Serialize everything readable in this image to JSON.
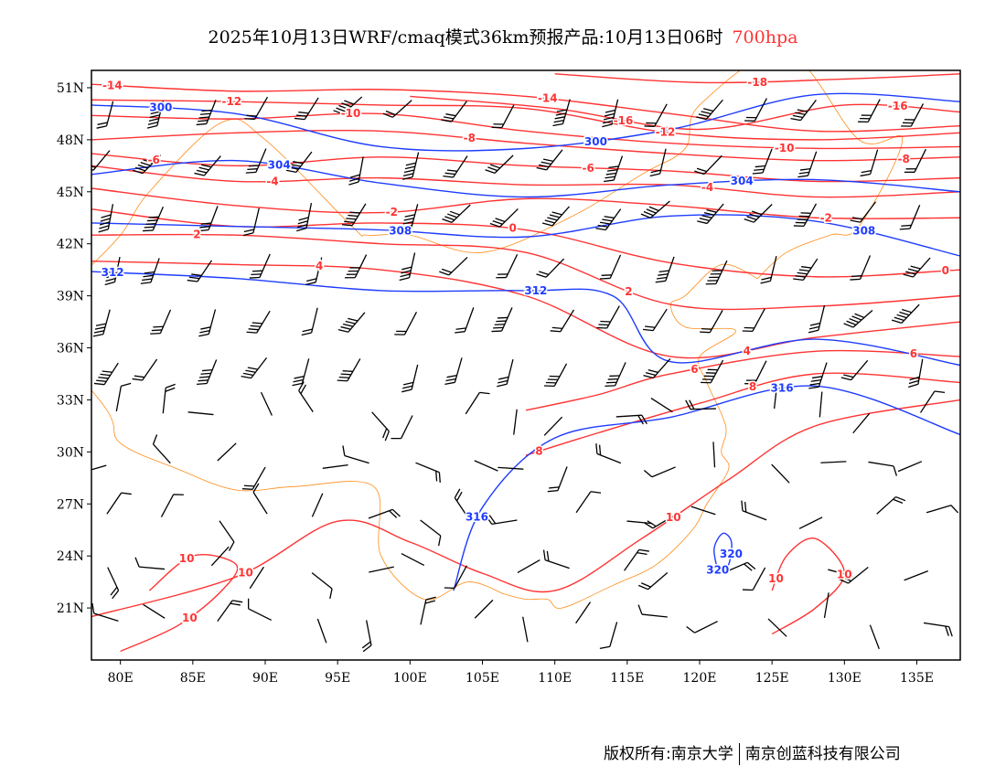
{
  "title": {
    "main": "2025年10月13日WRF/cmaq模式36km预报产品:10月13日06时",
    "level": "700hpa"
  },
  "footer": {
    "copyright": "版权所有:南京大学",
    "company": "南京创蓝科技有限公司"
  },
  "colors": {
    "temperature": "#ff3333",
    "height": "#1e3cff",
    "border": "#ff8c1a",
    "wind": "#000000"
  },
  "map": {
    "lon_range": [
      78,
      138
    ],
    "lat_range": [
      18,
      52
    ],
    "x_ticks": [
      "80E",
      "85E",
      "90E",
      "95E",
      "100E",
      "105E",
      "110E",
      "115E",
      "120E",
      "125E",
      "130E",
      "135E"
    ],
    "x_tick_values": [
      80,
      85,
      90,
      95,
      100,
      105,
      110,
      115,
      120,
      125,
      130,
      135
    ],
    "y_ticks": [
      "51N",
      "48N",
      "45N",
      "42N",
      "39N",
      "36N",
      "33N",
      "30N",
      "27N",
      "24N",
      "21N"
    ],
    "y_tick_values": [
      51,
      48,
      45,
      42,
      39,
      36,
      33,
      30,
      27,
      24,
      21
    ],
    "temperature_contours": [
      {
        "level": "-18",
        "lon": [
          110,
          120,
          130,
          138
        ],
        "lat": [
          51.8,
          51.3,
          51.5,
          51.8
        ]
      },
      {
        "level": "-16",
        "lon": [
          100,
          110,
          120,
          130,
          138
        ],
        "lat": [
          50.5,
          49.8,
          48.6,
          50,
          49.6
        ]
      },
      {
        "level": "-14",
        "lon": [
          78,
          88,
          98,
          108,
          118,
          128,
          138
        ],
        "lat": [
          51.2,
          50.8,
          50.9,
          50.5,
          49.5,
          48.5,
          48.8
        ]
      },
      {
        "level": "-12",
        "lon": [
          78,
          88,
          98,
          108,
          118,
          128,
          138
        ],
        "lat": [
          50.3,
          50.2,
          50,
          49.8,
          48.4,
          48,
          48.4
        ]
      },
      {
        "level": "-10",
        "lon": [
          78,
          88,
          98,
          108,
          118,
          128,
          138
        ],
        "lat": [
          49.4,
          49.2,
          49.5,
          48.5,
          47.8,
          47.5,
          47.6
        ]
      },
      {
        "level": "-8",
        "lon": [
          78,
          88,
          98,
          108,
          118,
          128,
          138
        ],
        "lat": [
          48,
          48.4,
          48.5,
          47.8,
          47.2,
          46.8,
          47
        ]
      },
      {
        "level": "-6",
        "lon": [
          78,
          88,
          98,
          108,
          118,
          128,
          138
        ],
        "lat": [
          47.2,
          46.5,
          47,
          46.5,
          46.2,
          45.6,
          45.8
        ]
      },
      {
        "level": "-4",
        "lon": [
          78,
          88,
          98,
          108,
          118,
          128,
          138
        ],
        "lat": [
          46.5,
          45.6,
          45.8,
          45.4,
          45.4,
          44.7,
          45
        ]
      },
      {
        "level": "-2",
        "lon": [
          78,
          88,
          98,
          108,
          118,
          128,
          138
        ],
        "lat": [
          45.2,
          44.2,
          43.8,
          44.6,
          44.2,
          43.5,
          43.5
        ]
      },
      {
        "level": "0",
        "lon": [
          78,
          88,
          98,
          108,
          118,
          128,
          138
        ],
        "lat": [
          44,
          43,
          43.2,
          42.8,
          40.9,
          40.1,
          40.5
        ]
      },
      {
        "level": "2",
        "lon": [
          78,
          88,
          98,
          108,
          118,
          128,
          138
        ],
        "lat": [
          42.5,
          42.5,
          42,
          41.5,
          38.5,
          38.4,
          39
        ]
      },
      {
        "level": "4",
        "lon": [
          78,
          88,
          98,
          108,
          118,
          128,
          138
        ],
        "lat": [
          41,
          40.8,
          40.5,
          39,
          35.5,
          36.6,
          37.5
        ]
      },
      {
        "level": "6",
        "lon": [
          108,
          113,
          118,
          128,
          138
        ],
        "lat": [
          32.4,
          33.3,
          34.5,
          35.8,
          35.5
        ]
      },
      {
        "level": "8",
        "lon": [
          108,
          113,
          120,
          128,
          138
        ],
        "lat": [
          29.8,
          31.1,
          32.8,
          34.5,
          34
        ]
      },
      {
        "level": "10",
        "lon": [
          78,
          88,
          95,
          100,
          105,
          110,
          116,
          122,
          128,
          138
        ],
        "lat": [
          20.5,
          22.8,
          26,
          24.8,
          23,
          22,
          25,
          28.4,
          31.5,
          33
        ]
      },
      {
        "level": "10",
        "lon": [
          80,
          84,
          87,
          88,
          85,
          82
        ],
        "lat": [
          18.5,
          20,
          22,
          23.5,
          24,
          22
        ]
      },
      {
        "level": "10",
        "lon": [
          125,
          128,
          130,
          128,
          126,
          125
        ],
        "lat": [
          19.5,
          21,
          23,
          25,
          24,
          22
        ]
      }
    ],
    "height_contours": [
      {
        "level": "300",
        "lon": [
          78,
          88,
          98,
          108,
          118,
          128,
          138
        ],
        "lat": [
          50,
          49.5,
          47.6,
          47.5,
          48.6,
          50.6,
          50.2
        ]
      },
      {
        "level": "304",
        "lon": [
          78,
          88,
          98,
          108,
          118,
          128,
          138
        ],
        "lat": [
          46,
          46.8,
          45.5,
          44.7,
          45.4,
          45.7,
          45
        ]
      },
      {
        "level": "308",
        "lon": [
          78,
          88,
          98,
          108,
          118,
          128,
          138
        ],
        "lat": [
          43.2,
          43,
          42.8,
          42.4,
          43.6,
          43.3,
          41.3
        ]
      },
      {
        "level": "312",
        "lon": [
          78,
          88,
          98,
          108,
          114,
          118,
          128,
          138
        ],
        "lat": [
          40.4,
          40,
          39.3,
          39.3,
          39,
          35.2,
          36.5,
          35
        ]
      },
      {
        "level": "316",
        "lon": [
          103,
          105,
          110,
          118,
          128,
          138
        ],
        "lat": [
          22,
          26.8,
          30.8,
          32,
          33.8,
          31
        ]
      },
      {
        "level": "320",
        "lon": [
          121.3,
          122,
          122.2,
          121.6,
          121,
          121.3
        ],
        "lat": [
          23,
          23.5,
          24.8,
          25.3,
          24.4,
          23
        ]
      }
    ],
    "coastline": {
      "lon": [
        124,
        121.5,
        119,
        118,
        119,
        122.5,
        120,
        120.5,
        121.8,
        121.5,
        122,
        120.5,
        119.5,
        117,
        114,
        110.5,
        109.5,
        108,
        106.5
      ],
      "lat": [
        40,
        40.8,
        39,
        38.5,
        37.2,
        37,
        35.5,
        34,
        31.5,
        30,
        29,
        27,
        25.5,
        23.5,
        22.3,
        21,
        21.5,
        21.5,
        21.8
      ]
    },
    "border": {
      "lon": [
        106.5,
        104,
        101,
        98,
        97.5,
        92,
        88,
        84,
        80,
        79,
        74,
        77,
        80,
        82,
        87,
        90,
        96,
        97,
        100,
        105,
        111,
        116,
        119,
        120,
        126,
        131,
        134,
        131,
        129,
        126,
        124
      ],
      "lat": [
        21.8,
        22.5,
        21.5,
        24,
        28,
        28,
        27.8,
        29,
        30.5,
        32.5,
        38,
        40,
        42.5,
        45,
        49,
        48,
        43,
        42.5,
        42.5,
        41.5,
        43.5,
        46,
        47.5,
        50,
        53,
        48,
        48,
        43,
        42.5,
        41.5,
        40
      ]
    }
  }
}
